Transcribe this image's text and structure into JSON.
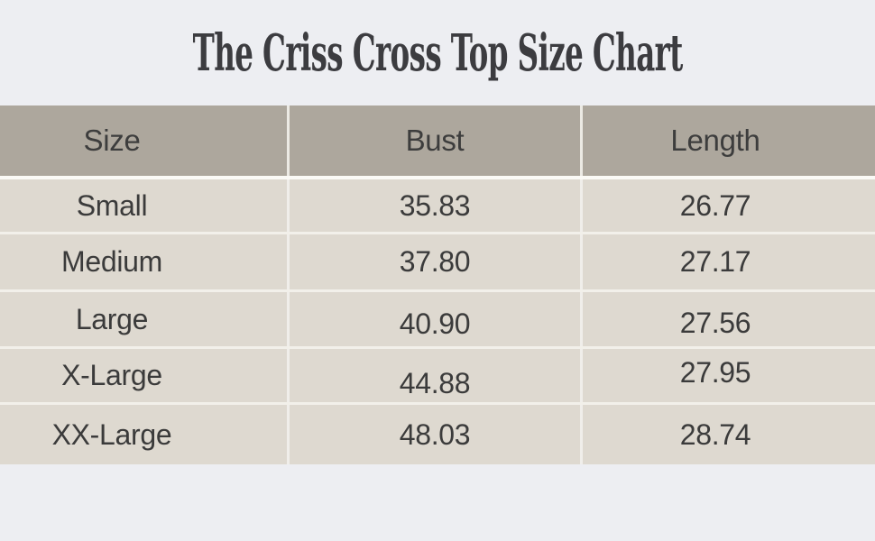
{
  "chart_data": {
    "type": "table",
    "title": "The Criss Cross Top Size Chart",
    "columns": [
      "Size",
      "Bust",
      "Length"
    ],
    "rows": [
      [
        "Small",
        "35.83",
        "26.77"
      ],
      [
        "Medium",
        "37.80",
        "27.17"
      ],
      [
        "Large",
        "40.90",
        "27.56"
      ],
      [
        "X-Large",
        "44.88",
        "27.95"
      ],
      [
        "XX-Large",
        "48.03",
        "28.74"
      ]
    ],
    "layout_hints": {
      "header_position": "top",
      "grid": "white separators between cells",
      "column_count": 3,
      "row_count": 5
    }
  },
  "colors": {
    "page_background": "#edeef2",
    "header_background": "#ada79d",
    "row_background": "#ded9d0",
    "separator": "#f2f0ea",
    "text": "#3b3b3b"
  }
}
